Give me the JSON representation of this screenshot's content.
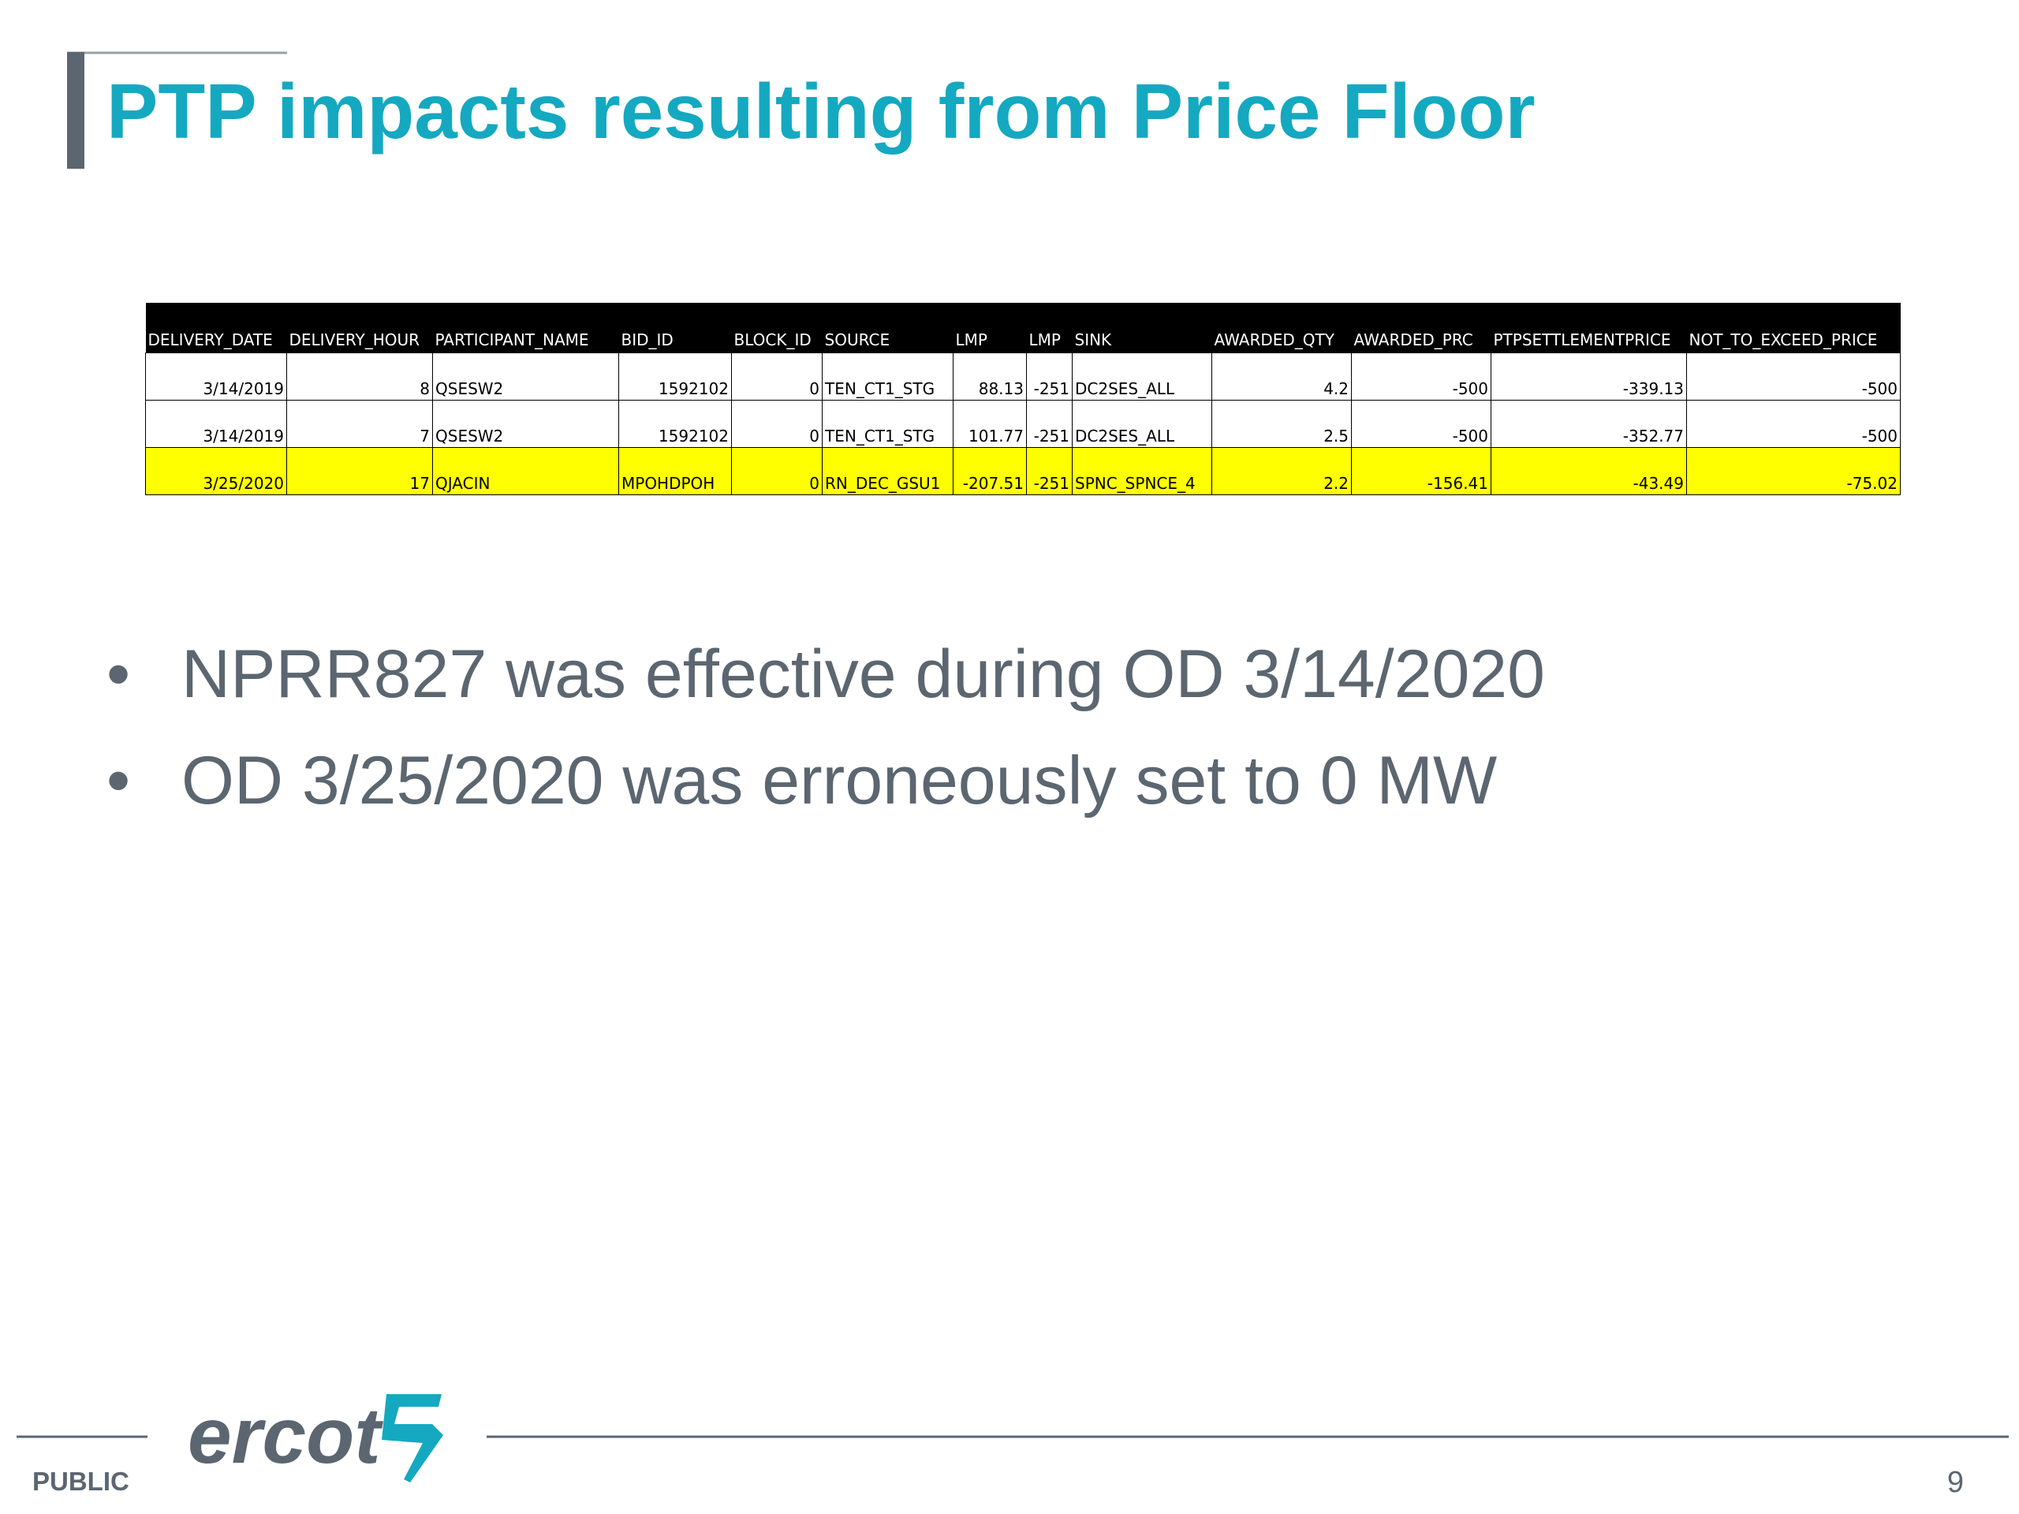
{
  "title": "PTP impacts resulting from Price Floor",
  "table": {
    "header": [
      "DELIVERY_DATE",
      "DELIVERY_HOUR",
      "PARTICIPANT_NAME",
      "BID_ID",
      "BLOCK_ID",
      "SOURCE",
      "LMP",
      "LMP",
      "SINK",
      "AWARDED_QTY",
      "AWARDED_PRC",
      "PTPSETTLEMENTPRICE",
      "NOT_TO_EXCEED_PRICE"
    ],
    "rows": [
      [
        "3/14/2019",
        "8",
        "QSESW2",
        "1592102",
        "0",
        "TEN_CT1_STG",
        "88.13",
        "-251",
        "DC2SES_ALL",
        "4.2",
        "-500",
        "-339.13",
        "-500"
      ],
      [
        "3/14/2019",
        "7",
        "QSESW2",
        "1592102",
        "0",
        "TEN_CT1_STG",
        "101.77",
        "-251",
        "DC2SES_ALL",
        "2.5",
        "-500",
        "-352.77",
        "-500"
      ],
      [
        "3/25/2020",
        "17",
        "QJACIN",
        "MPOHDPOH",
        "0",
        "RN_DEC_GSU1",
        "-207.51",
        "-251",
        "SPNC_SPNCE_4",
        "2.2",
        "-156.41",
        "-43.49",
        "-75.02"
      ]
    ]
  },
  "bullets": [
    "NPRR827 was effective during OD 3/14/2020",
    "OD 3/25/2020 was erroneously set to 0 MW"
  ],
  "footer": {
    "classification": "PUBLIC",
    "logo": "ercot",
    "page_number": "9"
  }
}
